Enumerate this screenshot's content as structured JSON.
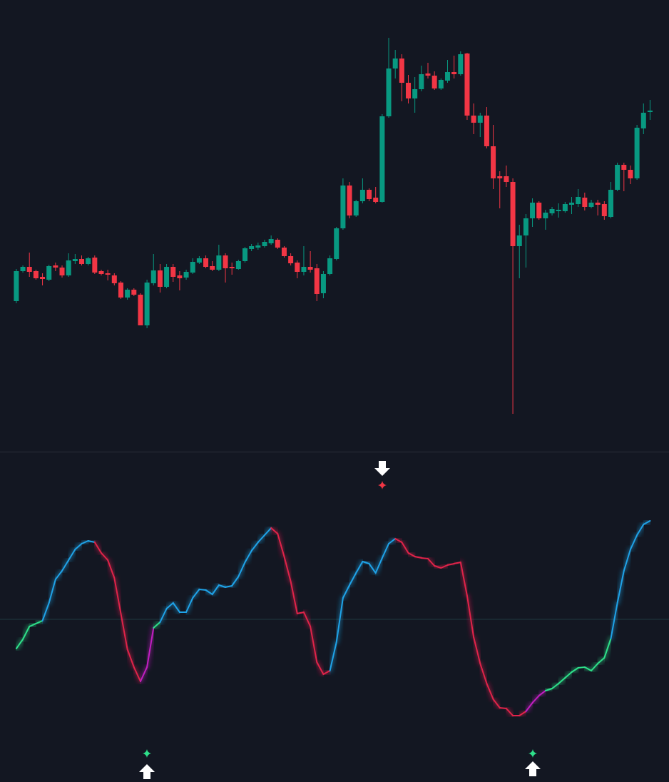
{
  "chart_data": [
    {
      "type": "candlestick",
      "up_color": "#089981",
      "down_color": "#f23645",
      "xlim": [
        -2.5,
        99.9
      ],
      "ylim": [
        -32,
        600
      ],
      "open": [
        178,
        220,
        226,
        220,
        212,
        208,
        228,
        225,
        214,
        234,
        237,
        230,
        239,
        220,
        217,
        214,
        204,
        183,
        194,
        187,
        144,
        203,
        221,
        198,
        226,
        214,
        211,
        218,
        232,
        238,
        227,
        222,
        242,
        226,
        223,
        234,
        251,
        253,
        255,
        259,
        264,
        253,
        241,
        232,
        219,
        226,
        224,
        189,
        216,
        237,
        280,
        340,
        298,
        318,
        334,
        323,
        317,
        437,
        504,
        518,
        484,
        462,
        475,
        497,
        494,
        476,
        487,
        499,
        496,
        525,
        438,
        428,
        438,
        395,
        353,
        353,
        345,
        255,
        270,
        294,
        316,
        294,
        301,
        304,
        304,
        313,
        314,
        323,
        310,
        316,
        314,
        296,
        334,
        369,
        362,
        350,
        420,
        443
      ],
      "close": [
        220,
        226,
        219,
        210,
        209,
        227,
        225,
        214,
        235,
        237,
        230,
        238,
        218,
        216,
        215,
        203,
        183,
        194,
        187,
        144,
        204,
        221,
        198,
        226,
        212,
        210,
        219,
        233,
        238,
        226,
        222,
        242,
        224,
        224,
        234,
        252,
        255,
        256,
        261,
        265,
        253,
        241,
        231,
        219,
        226,
        222,
        188,
        216,
        238,
        280,
        340,
        298,
        318,
        334,
        321,
        317,
        437,
        504,
        518,
        484,
        462,
        475,
        496,
        494,
        476,
        488,
        499,
        496,
        524,
        438,
        428,
        438,
        395,
        350,
        350,
        345,
        255,
        270,
        294,
        316,
        294,
        302,
        307,
        306,
        314,
        316,
        324,
        310,
        316,
        313,
        297,
        334,
        369,
        362,
        350,
        421,
        442,
        445
      ],
      "high": [
        223,
        228,
        246,
        222,
        217,
        229,
        232,
        228,
        245,
        244,
        242,
        240,
        242,
        222,
        222,
        217,
        206,
        196,
        196,
        189,
        208,
        244,
        230,
        230,
        230,
        220,
        222,
        238,
        241,
        242,
        234,
        257,
        245,
        232,
        236,
        254,
        258,
        260,
        264,
        270,
        266,
        255,
        245,
        235,
        255,
        248,
        230,
        220,
        242,
        282,
        350,
        345,
        320,
        350,
        336,
        338,
        440,
        547,
        530,
        524,
        495,
        492,
        508,
        512,
        500,
        490,
        516,
        522,
        528,
        526,
        455,
        442,
        450,
        425,
        360,
        368,
        350,
        285,
        300,
        322,
        318,
        306,
        310,
        315,
        317,
        324,
        335,
        330,
        320,
        320,
        318,
        345,
        372,
        372,
        368,
        425,
        455,
        460
      ],
      "low": [
        175,
        218,
        212,
        208,
        200,
        206,
        220,
        211,
        212,
        230,
        228,
        228,
        216,
        214,
        207,
        200,
        181,
        180,
        185,
        144,
        140,
        200,
        190,
        196,
        205,
        193,
        208,
        216,
        230,
        224,
        220,
        220,
        204,
        215,
        222,
        232,
        248,
        250,
        253,
        257,
        251,
        239,
        228,
        210,
        214,
        218,
        178,
        182,
        214,
        235,
        278,
        294,
        296,
        315,
        318,
        315,
        316,
        435,
        490,
        458,
        455,
        442,
        472,
        490,
        474,
        474,
        484,
        490,
        494,
        432,
        412,
        408,
        392,
        335,
        308,
        338,
        20,
        210,
        225,
        282,
        292,
        278,
        298,
        295,
        302,
        300,
        310,
        305,
        308,
        298,
        292,
        294,
        332,
        332,
        342,
        348,
        412,
        432
      ]
    },
    {
      "type": "line",
      "xlim": [
        -2.5,
        99.9
      ],
      "ylim": [
        -228,
        235
      ],
      "hlines": [
        0
      ],
      "values": [
        -41,
        -28,
        -10,
        -6,
        -2,
        23,
        56,
        68,
        83,
        98,
        106,
        110,
        108,
        93,
        83,
        58,
        8,
        -42,
        -67,
        -87,
        -67,
        -12,
        -4,
        15,
        23,
        10,
        10,
        30,
        42,
        41,
        35,
        48,
        45,
        47,
        60,
        80,
        96,
        108,
        118,
        128,
        120,
        88,
        53,
        8,
        10,
        -10,
        -60,
        -77,
        -72,
        -32,
        30,
        48,
        65,
        81,
        78,
        65,
        86,
        106,
        113,
        108,
        93,
        88,
        86,
        85,
        75,
        72,
        76,
        78,
        80,
        33,
        -25,
        -62,
        -90,
        -112,
        -124,
        -125,
        -135,
        -135,
        -129,
        -117,
        -107,
        -100,
        -97,
        -90,
        -82,
        -74,
        -68,
        -67,
        -72,
        -62,
        -54,
        -27,
        23,
        68,
        98,
        118,
        133,
        138
      ],
      "colors": [
        "#2ee08a",
        "#2ee08a",
        "#2ee08a",
        "#2ee08a",
        "#2ee08a",
        "#1fa3e8",
        "#1fa3e8",
        "#1fa3e8",
        "#1fa3e8",
        "#1fa3e8",
        "#1fa3e8",
        "#1fa3e8",
        "#1fa3e8",
        "#e0234a",
        "#e0234a",
        "#e0234a",
        "#e0234a",
        "#e0234a",
        "#e0234a",
        "#e0234a",
        "#c21ec2",
        "#c21ec2",
        "#2ee08a",
        "#1fa3e8",
        "#1fa3e8",
        "#1fa3e8",
        "#1fa3e8",
        "#1fa3e8",
        "#1fa3e8",
        "#1fa3e8",
        "#1fa3e8",
        "#1fa3e8",
        "#1fa3e8",
        "#1fa3e8",
        "#1fa3e8",
        "#1fa3e8",
        "#1fa3e8",
        "#1fa3e8",
        "#1fa3e8",
        "#1fa3e8",
        "#e0234a",
        "#e0234a",
        "#e0234a",
        "#e0234a",
        "#e0234a",
        "#e0234a",
        "#e0234a",
        "#e0234a",
        "#e0234a",
        "#1fa3e8",
        "#1fa3e8",
        "#1fa3e8",
        "#1fa3e8",
        "#1fa3e8",
        "#1fa3e8",
        "#1fa3e8",
        "#1fa3e8",
        "#1fa3e8",
        "#1fa3e8",
        "#e0234a",
        "#e0234a",
        "#e0234a",
        "#e0234a",
        "#e0234a",
        "#e0234a",
        "#e0234a",
        "#e0234a",
        "#e0234a",
        "#e0234a",
        "#e0234a",
        "#e0234a",
        "#e0234a",
        "#e0234a",
        "#e0234a",
        "#e0234a",
        "#e0234a",
        "#e0234a",
        "#e0234a",
        "#e0234a",
        "#c21ec2",
        "#c21ec2",
        "#c21ec2",
        "#2ee08a",
        "#2ee08a",
        "#2ee08a",
        "#2ee08a",
        "#2ee08a",
        "#2ee08a",
        "#2ee08a",
        "#2ee08a",
        "#2ee08a",
        "#2ee08a",
        "#1fa3e8",
        "#1fa3e8",
        "#1fa3e8",
        "#1fa3e8",
        "#1fa3e8",
        "#1fa3e8"
      ]
    }
  ]
}
